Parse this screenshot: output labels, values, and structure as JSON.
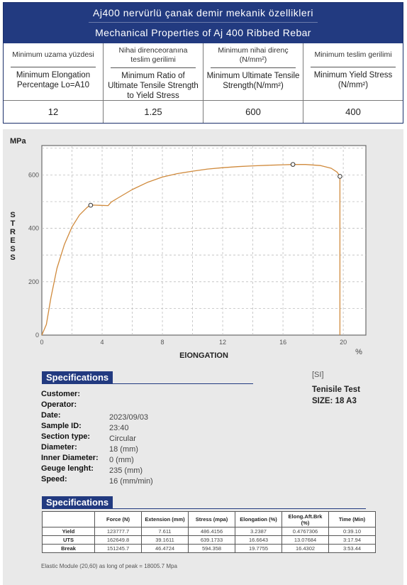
{
  "header": {
    "title_tr": "Aj400 nervürlü çanak demir mekanik özellikleri",
    "title_en": "Mechanical Properties of Aj 400 Ribbed Rebar"
  },
  "properties": [
    {
      "tr": "Minimum uzama yüzdesi",
      "en": "Minimum Elongation Percentage Lo=A10",
      "value": "12"
    },
    {
      "tr": "Nihai direnceoranına teslim gerilimi",
      "en": "Minimum Ratio of Ultimate Tensile Strength to Yield Stress",
      "value": "1.25"
    },
    {
      "tr": "Minimum nihai direnç (N/mm²)",
      "en": "Minimum Ultimate Tensile Strength(N/mm²)",
      "value": "600"
    },
    {
      "tr": "Minimum teslim gerilimi",
      "en": "Minimum Yield Stress (N/mm²)",
      "value": "400"
    }
  ],
  "chart_data": {
    "type": "line",
    "ylabel_unit": "MPa",
    "ylabel": "STRESS",
    "xlabel": "ElONGATION",
    "xunit": "%",
    "x_ticks": [
      "0",
      "4",
      "8",
      "12",
      "16",
      "20"
    ],
    "y_ticks": [
      "0",
      "200",
      "400",
      "600"
    ],
    "xlim": [
      0,
      21.5
    ],
    "ylim": [
      0,
      710
    ],
    "grid": true,
    "line_color": "#d08a3c",
    "series": [
      {
        "x": [
          0,
          0.3,
          0.6,
          1.0,
          1.5,
          2.0,
          2.5,
          3.0,
          3.2,
          3.4,
          3.8,
          4.4,
          4.6,
          5.0,
          6.0,
          7.0,
          8.0,
          9.0,
          10.0,
          11.0,
          12.0,
          13.0,
          14.0,
          15.0,
          16.0,
          16.66,
          17.5,
          18.5,
          19.2,
          19.6,
          19.78,
          19.78
        ],
        "y": [
          0,
          40,
          140,
          250,
          340,
          405,
          450,
          478,
          486,
          487,
          486,
          485,
          498,
          512,
          545,
          572,
          592,
          605,
          614,
          622,
          627,
          631,
          634,
          636,
          638,
          639,
          639,
          635,
          625,
          610,
          594,
          0
        ]
      }
    ],
    "markers": [
      {
        "label": "Yield",
        "x": 3.24,
        "y": 486.4
      },
      {
        "label": "UTS",
        "x": 16.66,
        "y": 639.2
      },
      {
        "label": "Break",
        "x": 19.78,
        "y": 594.4
      }
    ]
  },
  "specs": {
    "title": "Specifications",
    "si": "[SI]",
    "test_name": "Tenisile Test",
    "test_size": "SIZE: 18 A3",
    "rows": [
      {
        "label": "Customer:",
        "value": ""
      },
      {
        "label": "Operator:",
        "value": ""
      },
      {
        "label": "Date:",
        "value": "2023/09/03"
      },
      {
        "label": "Sample ID:",
        "value": "23:40"
      },
      {
        "label": "Section type:",
        "value": "Circular"
      },
      {
        "label": "Diameter:",
        "value": "18 (mm)"
      },
      {
        "label": "Inner Diameter:",
        "value": "0 (mm)"
      },
      {
        "label": "Geuge lenght:",
        "value": "235 (mm)"
      },
      {
        "label": "Speed:",
        "value": "16 (mm/min)"
      }
    ]
  },
  "results": {
    "title": "Specifications",
    "columns": [
      "",
      "Force (N)",
      "Extension (mm)",
      "Stress (mpa)",
      "Elongation (%)",
      "Elong.Aft.Brk (%)",
      "Time (Min)"
    ],
    "rows": [
      [
        "Yield",
        "123777.7",
        "7.611",
        "486.4156",
        "3.2387",
        "0.4767306",
        "0:39.10"
      ],
      [
        "UTS",
        "162649.8",
        "39.1611",
        "639.1733",
        "16.6643",
        "13.07684",
        "3:17.94"
      ],
      [
        "Break",
        "151245.7",
        "46.4724",
        "594.358",
        "19.7755",
        "16.4302",
        "3:53.44"
      ]
    ],
    "footnote": "Elastic Module (20,60) as long of peak = 18005.7 Mpa"
  }
}
